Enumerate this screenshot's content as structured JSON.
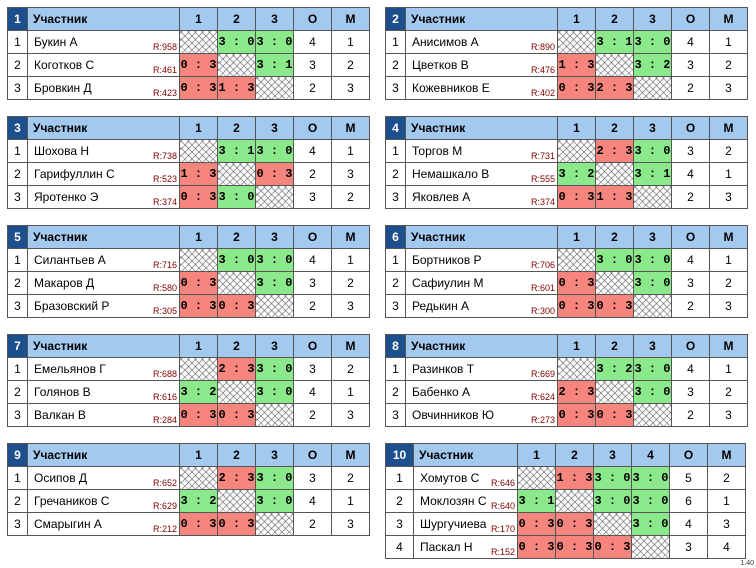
{
  "header": {
    "participant": "Участник",
    "points": "О",
    "place": "М"
  },
  "groups": [
    {
      "num": "1",
      "cols": [
        "1",
        "2",
        "3"
      ],
      "rows": [
        {
          "pos": "1",
          "name": "Букин А",
          "rating": "R:958",
          "cells": [
            "X",
            "3 : 0",
            "3 : 0"
          ],
          "pts": "4",
          "place": "1"
        },
        {
          "pos": "2",
          "name": "Коготков С",
          "rating": "R:461",
          "cells": [
            "0 : 3",
            "X",
            "3 : 1"
          ],
          "pts": "3",
          "place": "2"
        },
        {
          "pos": "3",
          "name": "Бровкин Д",
          "rating": "R:423",
          "cells": [
            "0 : 3",
            "1 : 3",
            "X"
          ],
          "pts": "2",
          "place": "3"
        }
      ]
    },
    {
      "num": "2",
      "cols": [
        "1",
        "2",
        "3"
      ],
      "rows": [
        {
          "pos": "1",
          "name": "Анисимов А",
          "rating": "R:890",
          "cells": [
            "X",
            "3 : 1",
            "3 : 0"
          ],
          "pts": "4",
          "place": "1"
        },
        {
          "pos": "2",
          "name": "Цветков В",
          "rating": "R:476",
          "cells": [
            "1 : 3",
            "X",
            "3 : 2"
          ],
          "pts": "3",
          "place": "2"
        },
        {
          "pos": "3",
          "name": "Кожевников Е",
          "rating": "R:402",
          "cells": [
            "0 : 3",
            "2 : 3",
            "X"
          ],
          "pts": "2",
          "place": "3"
        }
      ]
    },
    {
      "num": "3",
      "cols": [
        "1",
        "2",
        "3"
      ],
      "rows": [
        {
          "pos": "1",
          "name": "Шохова Н",
          "rating": "R:738",
          "cells": [
            "X",
            "3 : 1",
            "3 : 0"
          ],
          "pts": "4",
          "place": "1"
        },
        {
          "pos": "2",
          "name": "Гарифуллин С",
          "rating": "R:523",
          "cells": [
            "1 : 3",
            "X",
            "0 : 3"
          ],
          "pts": "2",
          "place": "3"
        },
        {
          "pos": "3",
          "name": "Яротенко Э",
          "rating": "R:374",
          "cells": [
            "0 : 3",
            "3 : 0",
            "X"
          ],
          "pts": "3",
          "place": "2"
        }
      ]
    },
    {
      "num": "4",
      "cols": [
        "1",
        "2",
        "3"
      ],
      "rows": [
        {
          "pos": "1",
          "name": "Торгов М",
          "rating": "R:731",
          "cells": [
            "X",
            "2 : 3",
            "3 : 0"
          ],
          "pts": "3",
          "place": "2"
        },
        {
          "pos": "2",
          "name": "Немашкало В",
          "rating": "R:555",
          "cells": [
            "3 : 2",
            "X",
            "3 : 1"
          ],
          "pts": "4",
          "place": "1"
        },
        {
          "pos": "3",
          "name": "Яковлев А",
          "rating": "R:374",
          "cells": [
            "0 : 3",
            "1 : 3",
            "X"
          ],
          "pts": "2",
          "place": "3"
        }
      ]
    },
    {
      "num": "5",
      "cols": [
        "1",
        "2",
        "3"
      ],
      "rows": [
        {
          "pos": "1",
          "name": "Силантьев А",
          "rating": "R:716",
          "cells": [
            "X",
            "3 : 0",
            "3 : 0"
          ],
          "pts": "4",
          "place": "1"
        },
        {
          "pos": "2",
          "name": "Макаров Д",
          "rating": "R:580",
          "cells": [
            "0 : 3",
            "X",
            "3 : 0"
          ],
          "pts": "3",
          "place": "2"
        },
        {
          "pos": "3",
          "name": "Бразовский Р",
          "rating": "R:305",
          "cells": [
            "0 : 3",
            "0 : 3",
            "X"
          ],
          "pts": "2",
          "place": "3"
        }
      ]
    },
    {
      "num": "6",
      "cols": [
        "1",
        "2",
        "3"
      ],
      "rows": [
        {
          "pos": "1",
          "name": "Бортников Р",
          "rating": "R:706",
          "cells": [
            "X",
            "3 : 0",
            "3 : 0"
          ],
          "pts": "4",
          "place": "1"
        },
        {
          "pos": "2",
          "name": "Сафиулин М",
          "rating": "R:601",
          "cells": [
            "0 : 3",
            "X",
            "3 : 0"
          ],
          "pts": "3",
          "place": "2"
        },
        {
          "pos": "3",
          "name": "Редькин А",
          "rating": "R:300",
          "cells": [
            "0 : 3",
            "0 : 3",
            "X"
          ],
          "pts": "2",
          "place": "3"
        }
      ]
    },
    {
      "num": "7",
      "cols": [
        "1",
        "2",
        "3"
      ],
      "rows": [
        {
          "pos": "1",
          "name": "Емельянов Г",
          "rating": "R:688",
          "cells": [
            "X",
            "2 : 3",
            "3 : 0"
          ],
          "pts": "3",
          "place": "2"
        },
        {
          "pos": "2",
          "name": "Голянов В",
          "rating": "R:616",
          "cells": [
            "3 : 2",
            "X",
            "3 : 0"
          ],
          "pts": "4",
          "place": "1"
        },
        {
          "pos": "3",
          "name": "Валкан В",
          "rating": "R:284",
          "cells": [
            "0 : 3",
            "0 : 3",
            "X"
          ],
          "pts": "2",
          "place": "3"
        }
      ]
    },
    {
      "num": "8",
      "cols": [
        "1",
        "2",
        "3"
      ],
      "rows": [
        {
          "pos": "1",
          "name": "Разинков Т",
          "rating": "R:669",
          "cells": [
            "X",
            "3 : 2",
            "3 : 0"
          ],
          "pts": "4",
          "place": "1"
        },
        {
          "pos": "2",
          "name": "Бабенко А",
          "rating": "R:624",
          "cells": [
            "2 : 3",
            "X",
            "3 : 0"
          ],
          "pts": "3",
          "place": "2"
        },
        {
          "pos": "3",
          "name": "Овчинников Ю",
          "rating": "R:273",
          "cells": [
            "0 : 3",
            "0 : 3",
            "X"
          ],
          "pts": "2",
          "place": "3"
        }
      ]
    },
    {
      "num": "9",
      "cols": [
        "1",
        "2",
        "3"
      ],
      "rows": [
        {
          "pos": "1",
          "name": "Осипов Д",
          "rating": "R:652",
          "cells": [
            "X",
            "2 : 3",
            "3 : 0"
          ],
          "pts": "3",
          "place": "2"
        },
        {
          "pos": "2",
          "name": "Гречаников С",
          "rating": "R:629",
          "cells": [
            "3 : 2",
            "X",
            "3 : 0"
          ],
          "pts": "4",
          "place": "1"
        },
        {
          "pos": "3",
          "name": "Смарыгин А",
          "rating": "R:212",
          "cells": [
            "0 : 3",
            "0 : 3",
            "X"
          ],
          "pts": "2",
          "place": "3"
        }
      ]
    },
    {
      "num": "10",
      "cols": [
        "1",
        "2",
        "3",
        "4"
      ],
      "rows": [
        {
          "pos": "1",
          "name": "Хомутов С",
          "rating": "R:646",
          "cells": [
            "X",
            "1 : 3",
            "3 : 0",
            "3 : 0"
          ],
          "pts": "5",
          "place": "2"
        },
        {
          "pos": "2",
          "name": "Моклозян С",
          "rating": "R:640",
          "cells": [
            "3 : 1",
            "X",
            "3 : 0",
            "3 : 0"
          ],
          "pts": "6",
          "place": "1"
        },
        {
          "pos": "3",
          "name": "Шургучиева",
          "rating": "R:170",
          "cells": [
            "0 : 3",
            "0 : 3",
            "X",
            "3 : 0"
          ],
          "pts": "4",
          "place": "3"
        },
        {
          "pos": "4",
          "name": "Паскал Н",
          "rating": "R:152",
          "cells": [
            "0 : 3",
            "0 : 3",
            "0 : 3",
            "X"
          ],
          "pts": "3",
          "place": "4"
        }
      ]
    }
  ],
  "version": "1.40"
}
